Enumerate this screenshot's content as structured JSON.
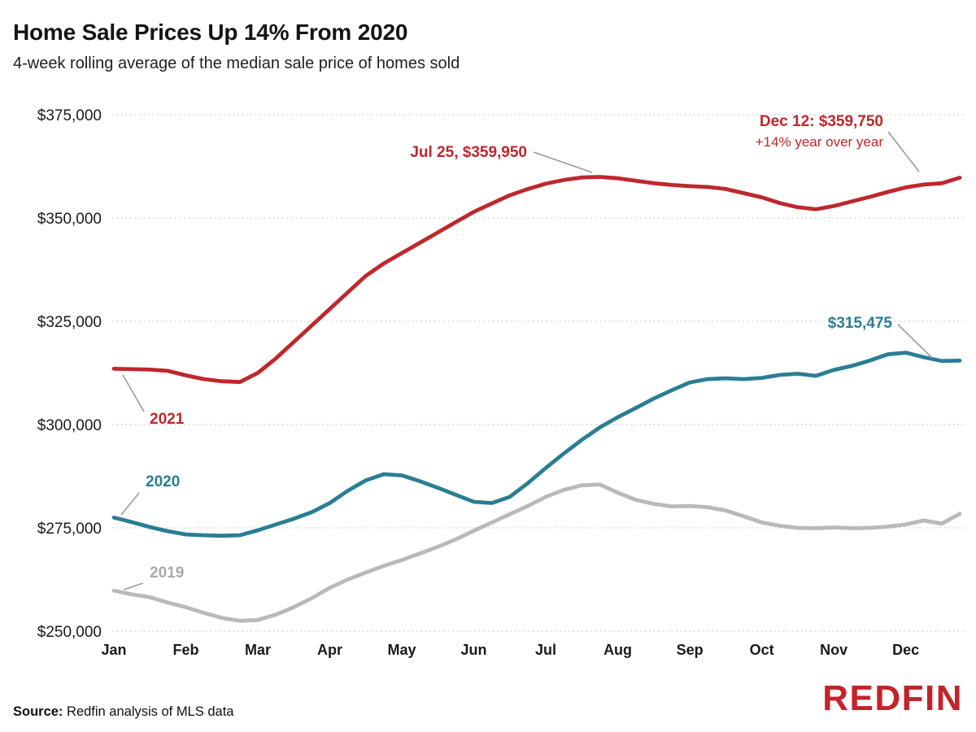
{
  "chart_data": {
    "type": "line",
    "title": "Home Sale Prices Up 14% From 2020",
    "subtitle": "4-week rolling average of the median sale price of homes sold",
    "ylim": [
      250000,
      375000
    ],
    "grid": "horizontal-dotted",
    "legend_position": "inline-labels",
    "y_ticks": [
      {
        "value": 250000,
        "label": "$250,000"
      },
      {
        "value": 275000,
        "label": "$275,000"
      },
      {
        "value": 300000,
        "label": "$300,000"
      },
      {
        "value": 325000,
        "label": "$325,000"
      },
      {
        "value": 350000,
        "label": "$350,000"
      },
      {
        "value": 375000,
        "label": "$375,000"
      }
    ],
    "x_tick_labels": [
      "Jan",
      "Feb",
      "Mar",
      "Apr",
      "May",
      "Jun",
      "Jul",
      "Aug",
      "Sep",
      "Oct",
      "Nov",
      "Dec"
    ],
    "points_per_month": 4,
    "series": [
      {
        "name": "2021",
        "color": "#bf272c",
        "values": [
          313500,
          313400,
          313300,
          313000,
          311900,
          311000,
          310500,
          310300,
          312500,
          316000,
          320000,
          324000,
          328000,
          332000,
          336000,
          339000,
          341500,
          344000,
          346500,
          349000,
          351500,
          353500,
          355500,
          357000,
          358300,
          359200,
          359800,
          359950,
          359600,
          359000,
          358400,
          358000,
          357700,
          357500,
          357000,
          356000,
          355000,
          353600,
          352600,
          352100,
          352900,
          354000,
          355100,
          356300,
          357400,
          358100,
          358400,
          359750
        ]
      },
      {
        "name": "2020",
        "color": "#2a7e93",
        "values": [
          277500,
          276400,
          275200,
          274200,
          273400,
          273200,
          273100,
          273200,
          274400,
          275800,
          277200,
          278800,
          281000,
          284000,
          286500,
          288000,
          287700,
          286300,
          284700,
          283000,
          281300,
          281000,
          282500,
          285800,
          289500,
          293000,
          296300,
          299300,
          301800,
          304000,
          306300,
          308300,
          310200,
          311000,
          311200,
          311000,
          311300,
          312000,
          312300,
          311800,
          313200,
          314200,
          315500,
          317000,
          317400,
          316300,
          315400,
          315475
        ]
      },
      {
        "name": "2019",
        "color": "#b9b9b9",
        "values": [
          259800,
          258900,
          258200,
          256900,
          255800,
          254400,
          253200,
          252500,
          252700,
          254000,
          255800,
          258000,
          260500,
          262500,
          264200,
          265800,
          267200,
          268800,
          270400,
          272200,
          274300,
          276300,
          278300,
          280300,
          282500,
          284200,
          285300,
          285500,
          283500,
          281800,
          280800,
          280200,
          280300,
          280000,
          279200,
          277800,
          276300,
          275500,
          275000,
          274900,
          275100,
          274900,
          275000,
          275300,
          275800,
          276800,
          276000,
          278400
        ]
      }
    ],
    "annotations": [
      {
        "id": "jul-peak",
        "text": "Jul 25, $359,950",
        "color": "#bf272c"
      },
      {
        "id": "dec-latest",
        "text": "Dec 12: $359,750",
        "color": "#bf272c"
      },
      {
        "id": "dec-latest-sub",
        "text": "+14% year over year",
        "color": "#bf272c"
      },
      {
        "id": "end-2020",
        "text": "$315,475",
        "color": "#2a7e93"
      },
      {
        "id": "series-label-2021",
        "text": "2021",
        "color": "#bf272c"
      },
      {
        "id": "series-label-2020",
        "text": "2020",
        "color": "#2a7e93"
      },
      {
        "id": "series-label-2019",
        "text": "2019",
        "color": "#ababab"
      }
    ]
  },
  "footer": {
    "source_label": "Source:",
    "source_text": " Redfin analysis of MLS data",
    "logo_text": "REDFIN"
  }
}
